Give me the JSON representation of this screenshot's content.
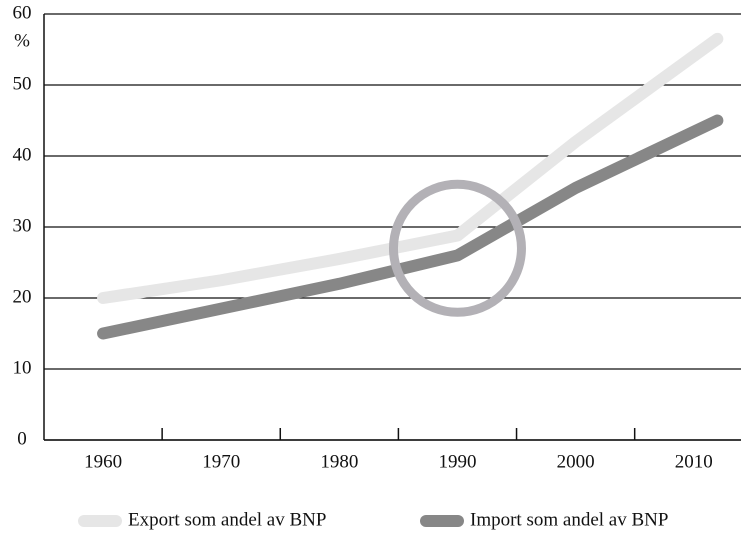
{
  "chart_data": {
    "type": "line",
    "ylabel": "%",
    "xlim": [
      1955,
      2014
    ],
    "xticks": [
      1960,
      1970,
      1980,
      1990,
      2000,
      2010
    ],
    "xminorticks": [
      1965,
      1975,
      1985,
      1995,
      2005
    ],
    "ylim": [
      0,
      60
    ],
    "yticks": [
      0,
      10,
      20,
      30,
      40,
      50,
      60
    ],
    "grid": true,
    "legend": "bottom",
    "highlight": {
      "x": 1990,
      "y": 27,
      "color": "#b3b1b6"
    },
    "series": [
      {
        "name": "Export som andel av BNP",
        "color": "#e6e6e6",
        "x": [
          1960,
          1970,
          1980,
          1990,
          2000,
          2012
        ],
        "values": [
          20,
          22.5,
          25.5,
          28.8,
          42,
          56.5
        ]
      },
      {
        "name": "Import som andel av BNP",
        "color": "#878787",
        "x": [
          1960,
          1970,
          1980,
          1990,
          2000,
          2012
        ],
        "values": [
          15,
          18.5,
          22,
          26,
          35.5,
          45
        ]
      }
    ]
  }
}
